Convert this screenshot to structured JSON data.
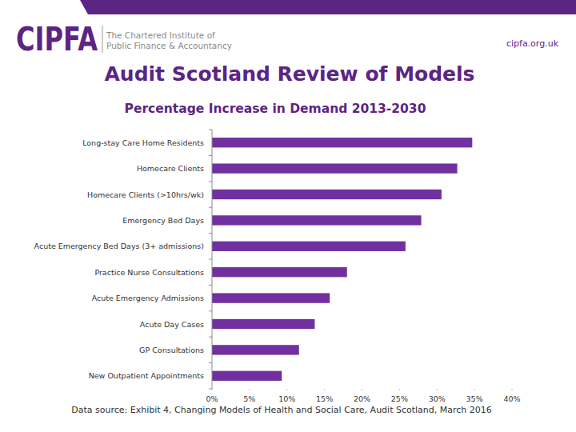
{
  "header": {
    "logo": "CIPFA",
    "org_line1": "The Chartered Institute of",
    "org_line2": "Public Finance & Accountancy",
    "url": "cipfa.org.uk"
  },
  "title": "Audit Scotland Review of Models",
  "chart_data": {
    "type": "bar",
    "orientation": "horizontal",
    "title": "Percentage Increase in Demand 2013-2030",
    "categories": [
      "Long-stay Care Home Residents",
      "Homecare Clients",
      "Homecare Clients (>10hrs/wk)",
      "Emergency Bed Days",
      "Acute Emergency Bed Days (3+ admissions)",
      "Practice Nurse Consultations",
      "Acute Emergency Admissions",
      "Acute Day Cases",
      "GP Consultations",
      "New Outpatient Appointments"
    ],
    "values": [
      34.7,
      32.7,
      30.6,
      27.9,
      25.8,
      18.0,
      15.7,
      13.7,
      11.6,
      9.3
    ],
    "color": "#7030a0",
    "xlim": [
      0,
      40
    ],
    "xticks": [
      {
        "value": 0,
        "label": "0%"
      },
      {
        "value": 5,
        "label": "5%"
      },
      {
        "value": 10,
        "label": "10%"
      },
      {
        "value": 15,
        "label": "15%"
      },
      {
        "value": 20,
        "label": "20%"
      },
      {
        "value": 25,
        "label": "25%"
      },
      {
        "value": 30,
        "label": "30%"
      },
      {
        "value": 35,
        "label": "35%"
      },
      {
        "value": 40,
        "label": "40%"
      }
    ],
    "grid": false
  },
  "footer": "Data source: Exhibit 4, Changing Models of Health and Social Care, Audit Scotland, March 2016"
}
